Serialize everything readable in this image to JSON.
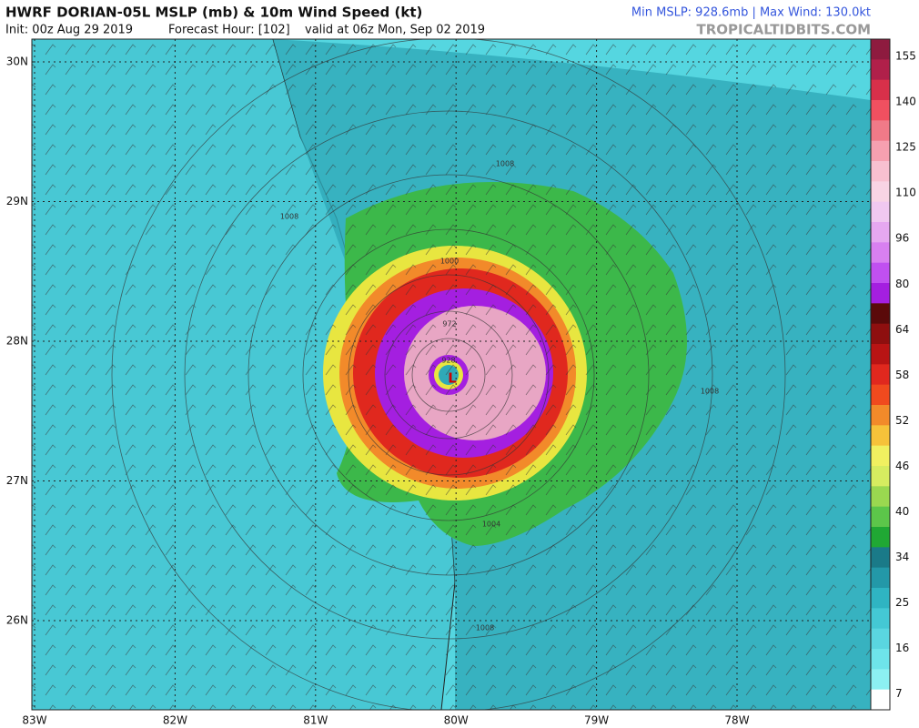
{
  "header": {
    "title": "HWRF DORIAN-05L MSLP (mb) & 10m Wind Speed (kt)",
    "init": "Init: 00z Aug 29 2019",
    "forecast_hour": "Forecast Hour: [102]",
    "valid": "valid at 06z Mon, Sep 02 2019",
    "stats": "Min MSLP: 928.6mb | Max Wind: 130.0kt",
    "site": "TROPICALTIDBITS.COM"
  },
  "map": {
    "lat_labels": [
      "30N",
      "29N",
      "28N",
      "27N",
      "26N"
    ],
    "lon_labels": [
      "83W",
      "82W",
      "81W",
      "80W",
      "79W",
      "78W"
    ],
    "center_label": "L",
    "contour_labels": [
      "1008",
      "1008",
      "1000",
      "1004",
      "1008",
      "1008",
      "972",
      "928"
    ]
  },
  "colorbar": {
    "labels": [
      "155",
      "140",
      "125",
      "110",
      "96",
      "80",
      "64",
      "58",
      "52",
      "46",
      "40",
      "34",
      "25",
      "16",
      "7"
    ]
  }
}
